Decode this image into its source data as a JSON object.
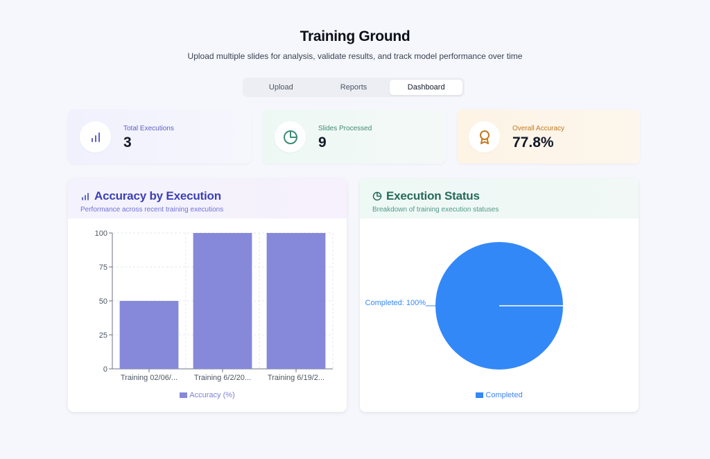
{
  "header": {
    "title": "Training Ground",
    "subtitle": "Upload multiple slides for analysis, validate results, and track model performance over time"
  },
  "tabs": [
    {
      "label": "Upload",
      "active": false
    },
    {
      "label": "Reports",
      "active": false
    },
    {
      "label": "Dashboard",
      "active": true
    }
  ],
  "stats": [
    {
      "label": "Total Executions",
      "value": "3",
      "icon": "bar-chart-icon",
      "color": "#5b5fc7"
    },
    {
      "label": "Slides Processed",
      "value": "9",
      "icon": "pie-chart-icon",
      "color": "#3f8a74"
    },
    {
      "label": "Overall Accuracy",
      "value": "77.8%",
      "icon": "award-icon",
      "color": "#c4781d"
    }
  ],
  "accuracy_panel": {
    "title": "Accuracy by Execution",
    "subtitle": "Performance across recent training executions",
    "legend": "Accuracy (%)",
    "bar_color": "#8689d9"
  },
  "status_panel": {
    "title": "Execution Status",
    "subtitle": "Breakdown of training execution statuses",
    "legend": "Completed",
    "pie_label": "Completed: 100%",
    "slice_color": "#3388f7"
  },
  "chart_data": [
    {
      "type": "bar",
      "categories": [
        "Training 02/06/...",
        "Training 6/2/20...",
        "Training 6/19/2..."
      ],
      "series": [
        {
          "name": "Accuracy (%)",
          "values": [
            50,
            100,
            100
          ]
        }
      ],
      "ylim": [
        0,
        100
      ],
      "yticks": [
        0,
        25,
        50,
        75,
        100
      ],
      "grid": true,
      "legend": "bottom"
    },
    {
      "type": "pie",
      "labels": [
        "Completed"
      ],
      "values": [
        100
      ],
      "data_labels": [
        "Completed: 100%"
      ],
      "legend": "bottom"
    }
  ]
}
